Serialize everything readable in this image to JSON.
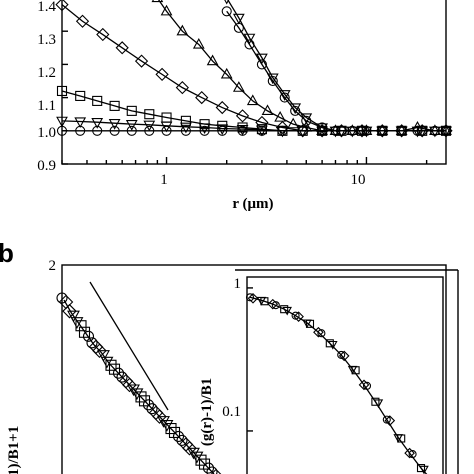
{
  "chart_data": [
    {
      "panel": "a",
      "type": "scatter",
      "xlabel": "r (μm)",
      "ylabel": "",
      "xscale": "log",
      "xlim": [
        0.3,
        25
      ],
      "ylim": [
        0.9,
        1.4
      ],
      "xticks": [
        "1",
        "10"
      ],
      "yticks": [
        "0.9",
        "1.0",
        "1.1",
        "1.2",
        "1.3",
        "1.4"
      ],
      "series": [
        {
          "marker": "triangle-up",
          "x": [
            0.9,
            1.0,
            1.2,
            1.45,
            1.7,
            2.0,
            2.3,
            2.7,
            3.2,
            3.7,
            4.3,
            5.0,
            6.0,
            7.0,
            8.5,
            10,
            12,
            15,
            18,
            22,
            25
          ],
          "y": [
            1.4,
            1.36,
            1.3,
            1.26,
            1.21,
            1.17,
            1.13,
            1.09,
            1.06,
            1.04,
            1.02,
            1.01,
            1.0,
            1.0,
            1.0,
            1.0,
            1.0,
            1.0,
            1.01,
            1.0,
            1.0
          ]
        },
        {
          "marker": "circle",
          "x": [
            2.0,
            2.3,
            2.6,
            3.0,
            3.4,
            3.9,
            4.4,
            5.0,
            6.0,
            7.0,
            8.5,
            10,
            12,
            15,
            18,
            22,
            25
          ],
          "y": [
            1.36,
            1.31,
            1.26,
            1.2,
            1.15,
            1.1,
            1.06,
            1.03,
            1.01,
            1.0,
            1.0,
            1.0,
            1.0,
            1.0,
            1.0,
            1.0,
            1.0
          ]
        },
        {
          "marker": "triangle-down",
          "x": [
            2.0,
            2.3,
            2.6,
            3.0,
            3.4,
            3.9,
            4.4,
            5.0,
            6.0,
            7.0,
            8.5,
            10,
            12,
            15,
            18,
            22,
            25
          ],
          "y": [
            1.4,
            1.34,
            1.28,
            1.22,
            1.16,
            1.11,
            1.07,
            1.04,
            1.01,
            1.0,
            1.0,
            1.0,
            1.0,
            1.0,
            1.0,
            1.0,
            1.0
          ]
        },
        {
          "marker": "diamond",
          "x": [
            0.3,
            0.38,
            0.48,
            0.6,
            0.75,
            0.95,
            1.2,
            1.5,
            1.9,
            2.4,
            3.0,
            3.8,
            4.8,
            6.0,
            7.5,
            9.5,
            12,
            15,
            19,
            25
          ],
          "y": [
            1.38,
            1.33,
            1.29,
            1.25,
            1.21,
            1.17,
            1.13,
            1.1,
            1.07,
            1.045,
            1.025,
            1.01,
            1.0,
            1.0,
            1.0,
            1.0,
            1.0,
            1.0,
            1.0,
            1.0
          ]
        },
        {
          "marker": "square",
          "x": [
            0.3,
            0.37,
            0.45,
            0.55,
            0.67,
            0.82,
            1.0,
            1.25,
            1.55,
            1.9,
            2.4,
            3.0,
            3.8,
            4.8,
            6.0,
            7.5,
            9.5,
            12,
            15,
            19,
            25
          ],
          "y": [
            1.12,
            1.105,
            1.09,
            1.075,
            1.06,
            1.05,
            1.04,
            1.03,
            1.02,
            1.015,
            1.01,
            1.005,
            1.0,
            1.0,
            1.0,
            1.0,
            1.0,
            1.0,
            1.0,
            1.0,
            1.0
          ]
        },
        {
          "marker": "triangle-down",
          "x": [
            0.3,
            0.37,
            0.45,
            0.55,
            0.67,
            0.82,
            1.0,
            1.25,
            1.55,
            1.9,
            2.4,
            3.0,
            3.8,
            4.8,
            6.0,
            7.5,
            9.5,
            12,
            15,
            19,
            25
          ],
          "y": [
            1.03,
            1.028,
            1.026,
            1.023,
            1.02,
            1.018,
            1.015,
            1.012,
            1.01,
            1.007,
            1.005,
            1.003,
            1.0,
            1.0,
            1.0,
            1.0,
            1.0,
            1.0,
            1.0,
            1.0,
            1.0
          ]
        },
        {
          "marker": "circle",
          "x": [
            0.3,
            0.37,
            0.45,
            0.55,
            0.67,
            0.82,
            1.0,
            1.25,
            1.55,
            1.9,
            2.4,
            3.0,
            3.8,
            4.8,
            6.0,
            7.5,
            9.5,
            12,
            15,
            19,
            25
          ],
          "y": [
            1.0,
            1.0,
            1.0,
            1.0,
            1.0,
            1.0,
            1.0,
            1.0,
            1.0,
            1.0,
            1.0,
            1.0,
            1.0,
            1.0,
            1.0,
            1.0,
            1.0,
            1.0,
            1.0,
            1.0,
            1.0
          ]
        }
      ]
    },
    {
      "panel": "b",
      "type": "scatter",
      "ylabel": "1)/B1+1",
      "yticks": [
        "2"
      ],
      "series": [
        {
          "marker": "mixed",
          "x": [
            0.0,
            0.05,
            0.1,
            0.15,
            0.2,
            0.25,
            0.3,
            0.35,
            0.4,
            0.45,
            0.5,
            0.55,
            0.6,
            0.65,
            0.7,
            0.75,
            0.8,
            0.85,
            0.9,
            0.95,
            1.0
          ],
          "y": [
            1.85,
            1.8,
            1.76,
            1.72,
            1.68,
            1.65,
            1.61,
            1.58,
            1.55,
            1.52,
            1.49,
            1.46,
            1.43,
            1.4,
            1.37,
            1.34,
            1.31,
            1.28,
            1.25,
            1.22,
            1.19
          ]
        }
      ]
    },
    {
      "panel": "b-inset",
      "type": "scatter",
      "ylabel": "(g(r)-1)/B1",
      "yscale": "log",
      "ylim": [
        0.05,
        1.1
      ],
      "yticks": [
        "1",
        "0.1"
      ],
      "series": [
        {
          "marker": "mixed",
          "x": [
            0.0,
            0.06,
            0.12,
            0.18,
            0.24,
            0.3,
            0.36,
            0.42,
            0.48,
            0.54,
            0.6,
            0.66,
            0.72,
            0.78,
            0.84,
            0.9,
            0.96
          ],
          "y": [
            0.86,
            0.82,
            0.77,
            0.71,
            0.64,
            0.57,
            0.49,
            0.41,
            0.34,
            0.27,
            0.21,
            0.16,
            0.12,
            0.09,
            0.07,
            0.055,
            0.045
          ]
        }
      ]
    }
  ]
}
